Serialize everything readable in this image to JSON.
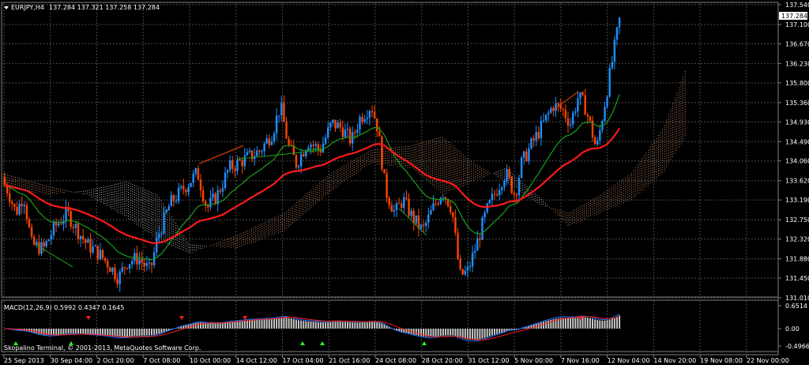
{
  "header": {
    "symbol_label": "EURJPY,H4",
    "ohlc": "137.284 137.321 137.258 137.284"
  },
  "price_axis": {
    "labels": [
      "137.540",
      "137.100",
      "136.670",
      "136.230",
      "135.800",
      "135.360",
      "134.930",
      "134.490",
      "134.060",
      "133.620",
      "133.190",
      "132.750",
      "132.320",
      "131.880",
      "131.450",
      "131.010"
    ],
    "current_price": "137.284",
    "range": [
      131.01,
      137.54
    ]
  },
  "macd": {
    "label": "MACD(12,26,9) 0.5992 0.4347 0.1645",
    "axis_labels": [
      "0.6514",
      "0.00",
      "-0.4966"
    ],
    "range": [
      -0.4966,
      0.6514
    ]
  },
  "time_axis": {
    "labels": [
      "25 Sep 2013",
      "30 Sep 04:00",
      "2 Oct 20:00",
      "7 Oct 08:00",
      "10 Oct 00:00",
      "14 Oct 12:00",
      "17 Oct 04:00",
      "21 Oct 16:00",
      "24 Oct 08:00",
      "28 Oct 20:00",
      "31 Oct 12:00",
      "5 Nov 00:00",
      "7 Nov 16:00",
      "12 Nov 04:00",
      "14 Nov 20:00",
      "19 Nov 08:00",
      "22 Nov 00:00"
    ]
  },
  "copyright": "Skopalino Terminal, © 2001-2013, MetaQuotes Software Corp.",
  "colors": {
    "background": "#000000",
    "grid": "#4a4a4a",
    "bull": "#1e90ff",
    "bear": "#ff4500",
    "ema_slow": "#ff1a1a",
    "ema_fast": "#1a9e1a",
    "cloud_a": "#e8a67a",
    "cloud_b": "#e0e0e0",
    "text": "#ffffff",
    "macd_hist": "#c8c8c8",
    "macd_main": "#1e6fff",
    "macd_signal": "#ff1a1a",
    "fractal": "#22ff22"
  }
}
